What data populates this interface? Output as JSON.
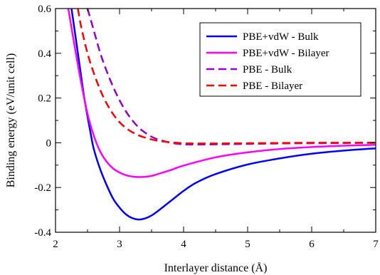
{
  "chart_data": {
    "type": "line",
    "title": "",
    "xlabel": "Interlayer distance (Å)",
    "ylabel": "Binding energy (eV/unit cell)",
    "xlim": [
      2,
      7
    ],
    "ylim": [
      -0.4,
      0.6
    ],
    "xticks": [
      2,
      3,
      4,
      5,
      6,
      7
    ],
    "xtick_labels": [
      "2",
      "3",
      "4",
      "5",
      "6",
      "7"
    ],
    "yticks": [
      -0.4,
      -0.2,
      0,
      0.2,
      0.4,
      0.6
    ],
    "ytick_labels": [
      "-0.4",
      "-0.2",
      "0",
      "0.2",
      "0.4",
      "0.6"
    ],
    "grid": false,
    "legend_position": "top-right",
    "series": [
      {
        "name": "PBE+vdW - Bulk",
        "color": "#0000ff",
        "dash": "solid",
        "x": [
          2.25,
          2.35,
          2.45,
          2.55,
          2.6,
          2.7,
          2.8,
          2.9,
          3.0,
          3.1,
          3.2,
          3.3,
          3.4,
          3.5,
          3.6,
          3.8,
          4.0,
          4.2,
          4.5,
          5.0,
          5.5,
          6.0,
          6.5,
          7.0
        ],
        "y": [
          0.6,
          0.4,
          0.2,
          0.04,
          -0.03,
          -0.12,
          -0.19,
          -0.25,
          -0.29,
          -0.32,
          -0.337,
          -0.343,
          -0.338,
          -0.325,
          -0.305,
          -0.26,
          -0.215,
          -0.178,
          -0.14,
          -0.097,
          -0.07,
          -0.049,
          -0.035,
          -0.025
        ]
      },
      {
        "name": "PBE+vdW - Bilayer",
        "color": "#ff00ff",
        "dash": "solid",
        "x": [
          2.2,
          2.3,
          2.4,
          2.5,
          2.6,
          2.7,
          2.8,
          2.9,
          3.0,
          3.1,
          3.2,
          3.3,
          3.4,
          3.5,
          3.6,
          3.8,
          4.0,
          4.5,
          5.0,
          5.5,
          6.0,
          6.5,
          7.0
        ],
        "y": [
          0.6,
          0.43,
          0.27,
          0.13,
          0.03,
          -0.04,
          -0.085,
          -0.115,
          -0.133,
          -0.145,
          -0.151,
          -0.153,
          -0.152,
          -0.148,
          -0.14,
          -0.122,
          -0.102,
          -0.065,
          -0.043,
          -0.028,
          -0.019,
          -0.013,
          -0.009
        ]
      },
      {
        "name": "PBE - Bulk",
        "color": "#9400d3",
        "dash": "dashed",
        "x": [
          2.5,
          2.6,
          2.7,
          2.8,
          2.9,
          3.0,
          3.1,
          3.2,
          3.3,
          3.4,
          3.5,
          3.6,
          3.8,
          4.0,
          4.2,
          4.5,
          5.0,
          5.5,
          6.0,
          6.5,
          7.0
        ],
        "y": [
          0.6,
          0.5,
          0.4,
          0.32,
          0.25,
          0.19,
          0.14,
          0.1,
          0.068,
          0.045,
          0.027,
          0.015,
          0.0,
          -0.007,
          -0.008,
          -0.007,
          -0.005,
          -0.003,
          -0.002,
          -0.001,
          0.0
        ]
      },
      {
        "name": "PBE - Bilayer",
        "color": "#ff0000",
        "dash": "dashed",
        "x": [
          2.35,
          2.4,
          2.5,
          2.6,
          2.7,
          2.8,
          2.9,
          3.0,
          3.1,
          3.2,
          3.3,
          3.4,
          3.5,
          3.6,
          3.8,
          4.0,
          4.2,
          4.5,
          5.0,
          5.5,
          6.0,
          6.5,
          7.0
        ],
        "y": [
          0.6,
          0.52,
          0.4,
          0.31,
          0.235,
          0.175,
          0.128,
          0.092,
          0.066,
          0.047,
          0.033,
          0.023,
          0.015,
          0.009,
          0.002,
          -0.002,
          -0.003,
          -0.003,
          -0.002,
          -0.001,
          0.0,
          0.0,
          0.0
        ]
      }
    ]
  }
}
